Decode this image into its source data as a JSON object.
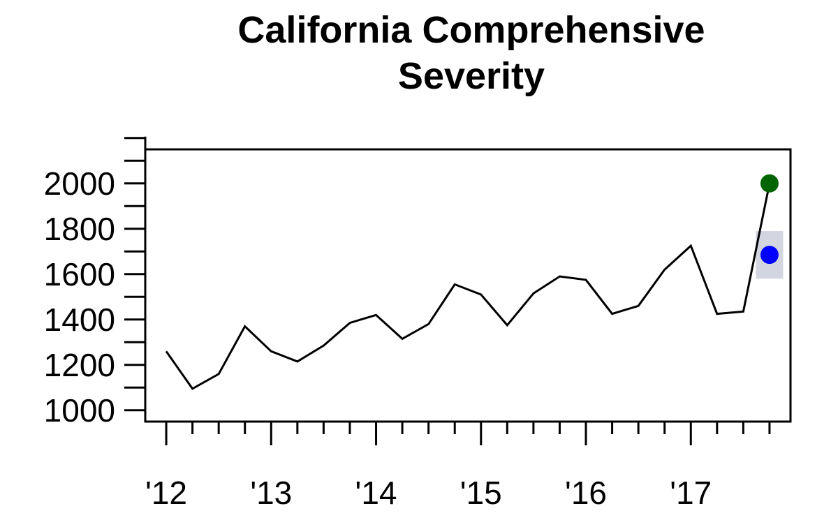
{
  "chart_data": {
    "type": "line",
    "title_lines": [
      "California Comprehensive",
      "Severity"
    ],
    "xlabel": "",
    "ylabel": "",
    "ylim": [
      950,
      2150
    ],
    "xlim": [
      2011.8,
      2017.95
    ],
    "y_ticks": [
      1000,
      1200,
      1400,
      1600,
      1800,
      2000
    ],
    "y_minor_step": 100,
    "x_ticks": [
      {
        "value": 2012,
        "label": "'12"
      },
      {
        "value": 2013,
        "label": "'13"
      },
      {
        "value": 2014,
        "label": "'14"
      },
      {
        "value": 2015,
        "label": "'15"
      },
      {
        "value": 2016,
        "label": "'16"
      },
      {
        "value": 2017,
        "label": "'17"
      }
    ],
    "x_minor_step": 0.25,
    "series": [
      {
        "color": "#000000",
        "x": [
          2012.0,
          2012.25,
          2012.5,
          2012.75,
          2013.0,
          2013.25,
          2013.5,
          2013.75,
          2014.0,
          2014.25,
          2014.5,
          2014.75,
          2015.0,
          2015.25,
          2015.5,
          2015.75,
          2016.0,
          2016.25,
          2016.5,
          2016.75,
          2017.0,
          2017.25,
          2017.5,
          2017.75
        ],
        "values": [
          1260,
          1095,
          1160,
          1370,
          1260,
          1215,
          1285,
          1385,
          1420,
          1315,
          1380,
          1555,
          1510,
          1375,
          1515,
          1590,
          1575,
          1425,
          1460,
          1620,
          1725,
          1425,
          1435,
          2000
        ]
      }
    ],
    "points": [
      {
        "x": 2017.75,
        "y": 2000,
        "color": "#006400"
      },
      {
        "x": 2017.75,
        "y": 1685,
        "color": "#0000ff"
      }
    ],
    "bands": [
      {
        "x_from": 2017.62,
        "x_to": 2017.88,
        "y_from": 1580,
        "y_to": 1790,
        "color": "#d3d6e0"
      }
    ]
  }
}
